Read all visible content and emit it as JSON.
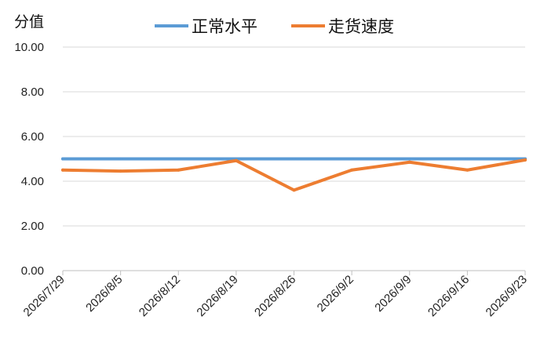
{
  "chart_data": {
    "type": "line",
    "title": "",
    "ylabel": "分值",
    "xlabel": "",
    "ylim": [
      0,
      10
    ],
    "yticks": [
      "0.00",
      "2.00",
      "4.00",
      "6.00",
      "8.00",
      "10.00"
    ],
    "ytick_values": [
      0,
      2,
      4,
      6,
      8,
      10
    ],
    "categories": [
      "2026/7/29",
      "2026/8/5",
      "2026/8/12",
      "2026/8/19",
      "2026/8/26",
      "2026/9/2",
      "2026/9/9",
      "2026/9/16",
      "2026/9/23"
    ],
    "series": [
      {
        "name": "正常水平",
        "color": "#5B9BD5",
        "values": [
          5,
          5,
          5,
          5,
          5,
          5,
          5,
          5,
          5
        ]
      },
      {
        "name": "走货速度",
        "color": "#ED7D31",
        "values": [
          4.5,
          4.45,
          4.5,
          4.92,
          3.6,
          4.5,
          4.85,
          4.5,
          4.95
        ]
      }
    ],
    "grid": true,
    "legend_position": "top"
  }
}
